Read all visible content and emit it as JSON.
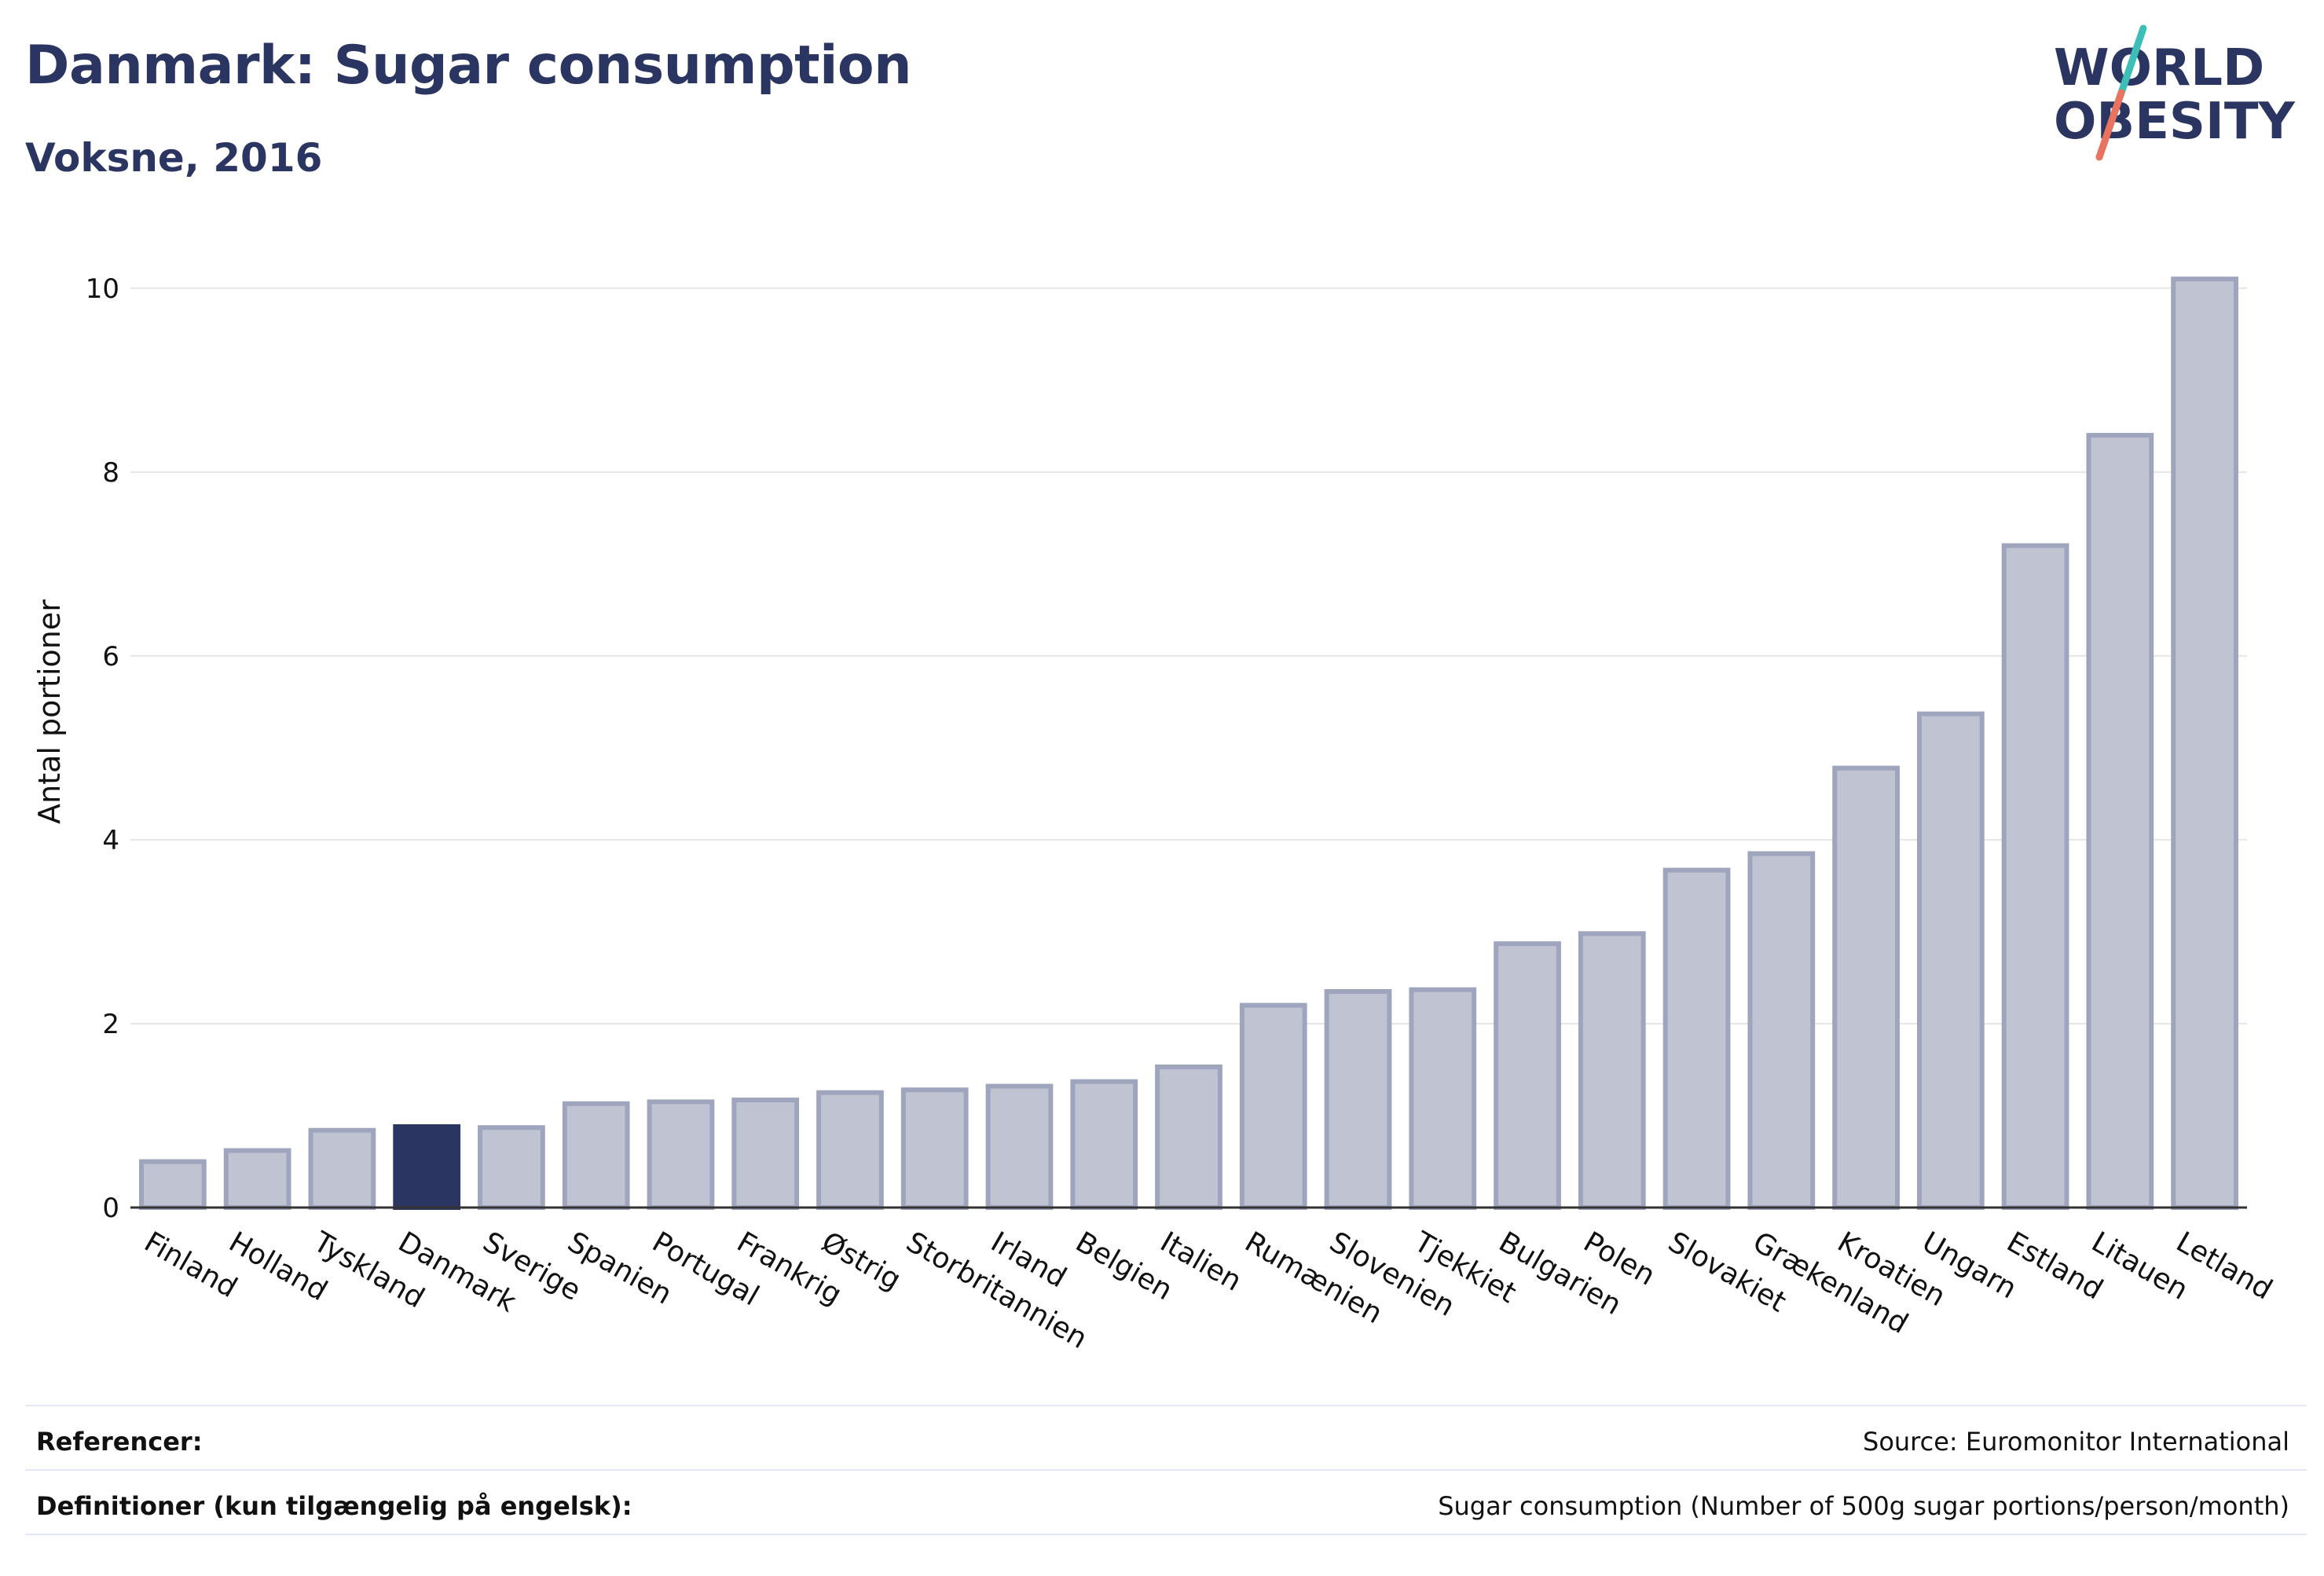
{
  "header": {
    "title": "Danmark: Sugar consumption",
    "subtitle": "Voksne, 2016"
  },
  "logo": {
    "line1": "WORLD",
    "line2": "OBESITY"
  },
  "colors": {
    "title": "#2b3561",
    "bar_default": "#bfc3d2",
    "bar_default_stroke": "#9fa5bd",
    "bar_highlight": "#2b3561",
    "grid": "#e6e6e6",
    "logo_teal": "#3dbfb8",
    "logo_coral": "#e8735f"
  },
  "chart_data": {
    "type": "bar",
    "categories": [
      "Finland",
      "Holland",
      "Tyskland",
      "Danmark",
      "Sverige",
      "Spanien",
      "Portugal",
      "Frankrig",
      "Østrig",
      "Storbritannien",
      "Irland",
      "Belgien",
      "Italien",
      "Rumænien",
      "Slovenien",
      "Tjekkiet",
      "Bulgarien",
      "Polen",
      "Slovakiet",
      "Grækenland",
      "Kroatien",
      "Ungarn",
      "Estland",
      "Litauen",
      "Letland"
    ],
    "values": [
      0.5,
      0.62,
      0.84,
      0.88,
      0.87,
      1.13,
      1.15,
      1.17,
      1.25,
      1.28,
      1.32,
      1.37,
      1.53,
      2.2,
      2.35,
      2.37,
      2.87,
      2.98,
      3.67,
      3.85,
      4.78,
      5.37,
      7.2,
      8.4,
      10.1
    ],
    "highlight": "Danmark",
    "title": "Danmark: Sugar consumption",
    "xlabel": "",
    "ylabel": "Antal portioner",
    "ylim": [
      0,
      10.4
    ],
    "yticks": [
      0,
      2,
      4,
      6,
      8,
      10
    ],
    "grid": true
  },
  "footer": {
    "references_label": "Referencer:",
    "references_value": "Source: Euromonitor International",
    "definitions_label": "Definitioner (kun tilgængelig på engelsk):",
    "definitions_value": "Sugar consumption (Number of 500g sugar portions/person/month)"
  }
}
